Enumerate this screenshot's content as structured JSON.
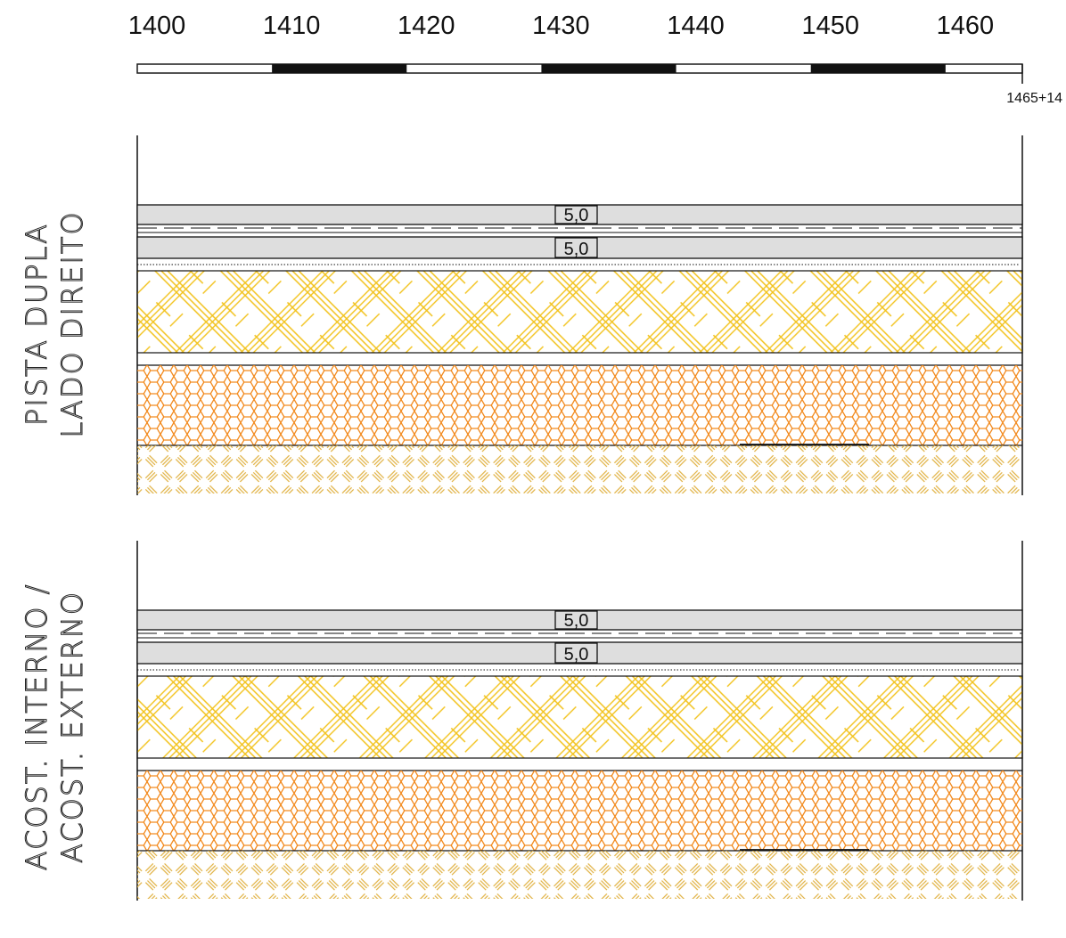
{
  "scale": {
    "ticks": [
      "1400",
      "1410",
      "1420",
      "1430",
      "1440",
      "1450",
      "1460"
    ],
    "start": 1400,
    "end": 1465.7,
    "end_label": "1465+14",
    "segment_interval": 10
  },
  "colors": {
    "pavement_fill": "#dedede",
    "base_hatch": "#f2c21b",
    "subbase_hatch": "#f28a1e",
    "subgrade_hatch": "#e8b84a",
    "line": "#1a1a1a"
  },
  "panels": [
    {
      "label_line1": "PISTA DUPLA",
      "label_line2": "LADO DIREITO",
      "layers": [
        {
          "type": "asphalt",
          "thickness_label": "5,0"
        },
        {
          "type": "tack-coat"
        },
        {
          "type": "asphalt",
          "thickness_label": "5,0"
        },
        {
          "type": "prime-coat"
        },
        {
          "type": "base",
          "hatch": "crosshatch"
        },
        {
          "type": "subbase",
          "hatch": "hexagon"
        },
        {
          "type": "subgrade",
          "hatch": "herringbone"
        }
      ]
    },
    {
      "label_line1": "ACOST. INTERNO /",
      "label_line2": "ACOST. EXTERNO",
      "layers": [
        {
          "type": "asphalt",
          "thickness_label": "5,0"
        },
        {
          "type": "tack-coat"
        },
        {
          "type": "asphalt",
          "thickness_label": "5,0"
        },
        {
          "type": "prime-coat"
        },
        {
          "type": "base",
          "hatch": "crosshatch"
        },
        {
          "type": "subbase",
          "hatch": "hexagon"
        },
        {
          "type": "subgrade",
          "hatch": "herringbone"
        }
      ]
    }
  ]
}
